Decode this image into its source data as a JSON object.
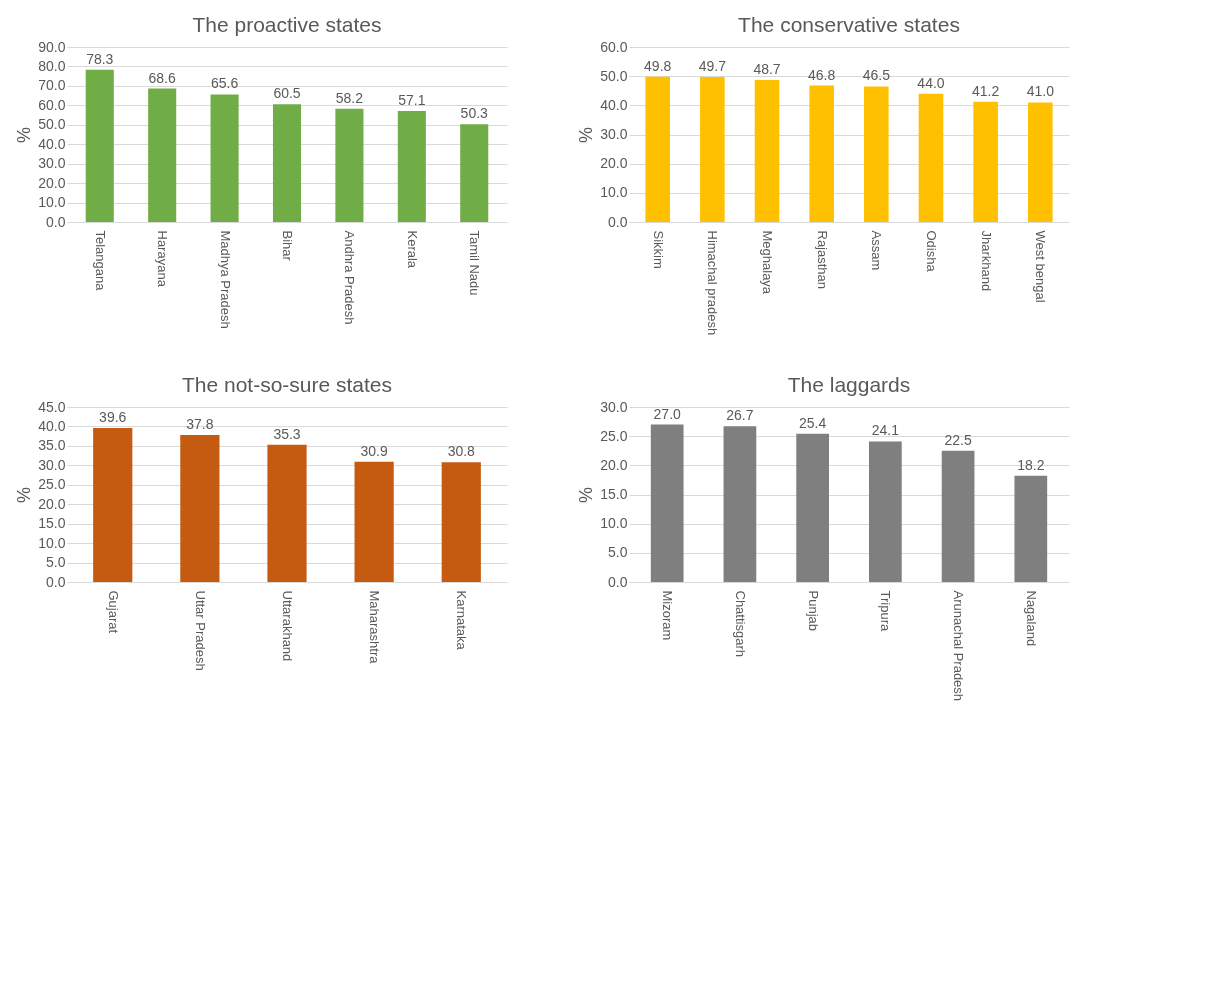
{
  "chart_data": [
    {
      "type": "bar",
      "title": "The proactive states",
      "ylabel": "%",
      "categories": [
        "Telangana",
        "Harayana",
        "Madhya Pradesh",
        "Bihar",
        "Andhra Pradesh",
        "Kerala",
        "Tamil Nadu"
      ],
      "values": [
        78.3,
        68.6,
        65.6,
        60.5,
        58.2,
        57.1,
        50.3
      ],
      "value_labels": [
        "78.3",
        "68.6",
        "65.6",
        "60.5",
        "58.2",
        "57.1",
        "50.3"
      ],
      "color": "#70ad47",
      "ylim": [
        0,
        90
      ],
      "yticks": [
        {
          "value": 0,
          "label": "0.0"
        },
        {
          "value": 10,
          "label": "10.0"
        },
        {
          "value": 20,
          "label": "20.0"
        },
        {
          "value": 30,
          "label": "30.0"
        },
        {
          "value": 40,
          "label": "40.0"
        },
        {
          "value": 50,
          "label": "50.0"
        },
        {
          "value": 60,
          "label": "60.0"
        },
        {
          "value": 70,
          "label": "70.0"
        },
        {
          "value": 80,
          "label": "80.0"
        },
        {
          "value": 90,
          "label": "90.0"
        }
      ],
      "grid": "y"
    },
    {
      "type": "bar",
      "title": "The conservative states",
      "ylabel": "%",
      "categories": [
        "Sikkim",
        "Himachal pradesh",
        "Meghalaya",
        "Rajasthan",
        "Assam",
        "Odisha",
        "Jharkhand",
        "West bengal"
      ],
      "values": [
        49.8,
        49.7,
        48.7,
        46.8,
        46.5,
        44.0,
        41.2,
        41.0
      ],
      "value_labels": [
        "49.8",
        "49.7",
        "48.7",
        "46.8",
        "46.5",
        "44.0",
        "41.2",
        "41.0"
      ],
      "color": "#ffc000",
      "ylim": [
        0,
        60
      ],
      "yticks": [
        {
          "value": 0,
          "label": "0.0"
        },
        {
          "value": 10,
          "label": "10.0"
        },
        {
          "value": 20,
          "label": "20.0"
        },
        {
          "value": 30,
          "label": "30.0"
        },
        {
          "value": 40,
          "label": "40.0"
        },
        {
          "value": 50,
          "label": "50.0"
        },
        {
          "value": 60,
          "label": "60.0"
        }
      ],
      "grid": "y"
    },
    {
      "type": "bar",
      "title": "The not-so-sure states",
      "ylabel": "%",
      "categories": [
        "Gujarat",
        "Uttar Pradesh",
        "Uttarakhand",
        "Maharashtra",
        "Karnataka"
      ],
      "values": [
        39.6,
        37.8,
        35.3,
        30.9,
        30.8
      ],
      "value_labels": [
        "39.6",
        "37.8",
        "35.3",
        "30.9",
        "30.8"
      ],
      "color": "#c55a11",
      "ylim": [
        0,
        45
      ],
      "yticks": [
        {
          "value": 0,
          "label": "0.0"
        },
        {
          "value": 5,
          "label": "5.0"
        },
        {
          "value": 10,
          "label": "10.0"
        },
        {
          "value": 15,
          "label": "15.0"
        },
        {
          "value": 20,
          "label": "20.0"
        },
        {
          "value": 25,
          "label": "25.0"
        },
        {
          "value": 30,
          "label": "30.0"
        },
        {
          "value": 35,
          "label": "35.0"
        },
        {
          "value": 40,
          "label": "40.0"
        },
        {
          "value": 45,
          "label": "45.0"
        }
      ],
      "grid": "y"
    },
    {
      "type": "bar",
      "title": "The laggards",
      "ylabel": "%",
      "categories": [
        "Mizoram",
        "Chattisgarh",
        "Punjab",
        "Tripura",
        "Arunachal Pradesh",
        "Nagaland"
      ],
      "values": [
        27.0,
        26.7,
        25.4,
        24.1,
        22.5,
        18.2
      ],
      "value_labels": [
        "27.0",
        "26.7",
        "25.4",
        "24.1",
        "22.5",
        "18.2"
      ],
      "color": "#7f7f7f",
      "ylim": [
        0,
        30
      ],
      "yticks": [
        {
          "value": 0,
          "label": "0.0"
        },
        {
          "value": 5,
          "label": "5.0"
        },
        {
          "value": 10,
          "label": "10.0"
        },
        {
          "value": 15,
          "label": "15.0"
        },
        {
          "value": 20,
          "label": "20.0"
        },
        {
          "value": 25,
          "label": "25.0"
        },
        {
          "value": 30,
          "label": "30.0"
        }
      ],
      "grid": "y"
    }
  ]
}
